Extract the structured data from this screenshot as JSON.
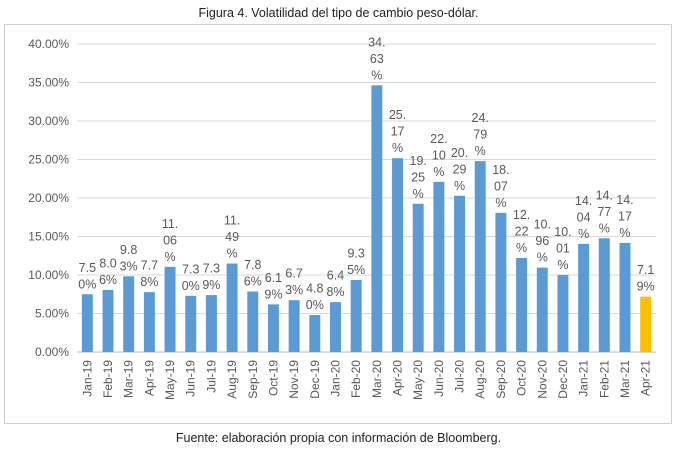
{
  "title": "Figura 4. Volatilidad del tipo de cambio peso-dólar.",
  "source": "Fuente: elaboración propia con información de Bloomberg.",
  "chart_data": {
    "type": "bar",
    "title": "Figura 4. Volatilidad del tipo de cambio peso-dólar.",
    "xlabel": "",
    "ylabel": "",
    "ylim": [
      0,
      40
    ],
    "yticks": [
      "0.00%",
      "5.00%",
      "10.00%",
      "15.00%",
      "20.00%",
      "25.00%",
      "30.00%",
      "35.00%",
      "40.00%"
    ],
    "grid": true,
    "categories": [
      "Jan-19",
      "Feb-19",
      "Mar-19",
      "Apr-19",
      "May-19",
      "Jun-19",
      "Jul-19",
      "Aug-19",
      "Sep-19",
      "Oct-19",
      "Nov-19",
      "Dec-19",
      "Jan-20",
      "Feb-20",
      "Mar-20",
      "Apr-20",
      "May-20",
      "Jun-20",
      "Jul-20",
      "Aug-20",
      "Sep-20",
      "Oct-20",
      "Nov-20",
      "Dec-20",
      "Jan-21",
      "Feb-21",
      "Mar-21",
      "Apr-21"
    ],
    "values": [
      7.5,
      8.06,
      9.83,
      7.78,
      11.06,
      7.3,
      7.39,
      11.49,
      7.86,
      6.19,
      6.73,
      4.8,
      6.48,
      9.35,
      34.63,
      25.17,
      19.25,
      22.1,
      20.29,
      24.79,
      18.07,
      12.22,
      10.96,
      10.01,
      14.04,
      14.77,
      14.17,
      7.19
    ],
    "data_labels": [
      [
        "7.5",
        "0%"
      ],
      [
        "8.0",
        "6%"
      ],
      [
        "9.8",
        "3%"
      ],
      [
        "7.7",
        "8%"
      ],
      [
        "11.",
        "06",
        "%"
      ],
      [
        "7.3",
        "0%"
      ],
      [
        "7.3",
        "9%"
      ],
      [
        "11.",
        "49",
        "%"
      ],
      [
        "7.8",
        "6%"
      ],
      [
        "6.1",
        "9%"
      ],
      [
        "6.7",
        "3%"
      ],
      [
        "4.8",
        "0%"
      ],
      [
        "6.4",
        "8%"
      ],
      [
        "9.3",
        "5%"
      ],
      [
        "34.",
        "63",
        "%"
      ],
      [
        "25.",
        "17",
        "%"
      ],
      [
        "19.",
        "25",
        "%"
      ],
      [
        "22.",
        "10",
        "%"
      ],
      [
        "20.",
        "29",
        "%"
      ],
      [
        "24.",
        "79",
        "%"
      ],
      [
        "18.",
        "07",
        "%"
      ],
      [
        "12.",
        "22",
        "%"
      ],
      [
        "10.",
        "96",
        "%"
      ],
      [
        "10.",
        "01",
        "%"
      ],
      [
        "14.",
        "04",
        "%"
      ],
      [
        "14.",
        "77",
        "%"
      ],
      [
        "14.",
        "17",
        "%"
      ],
      [
        "7.1",
        "9%"
      ]
    ],
    "colors": {
      "default": "#5b9bd5",
      "highlight": "#ffc000",
      "grid": "#d9d9d9",
      "axis": "#bfbfbf",
      "label": "#595959"
    },
    "highlight_index": 27
  }
}
